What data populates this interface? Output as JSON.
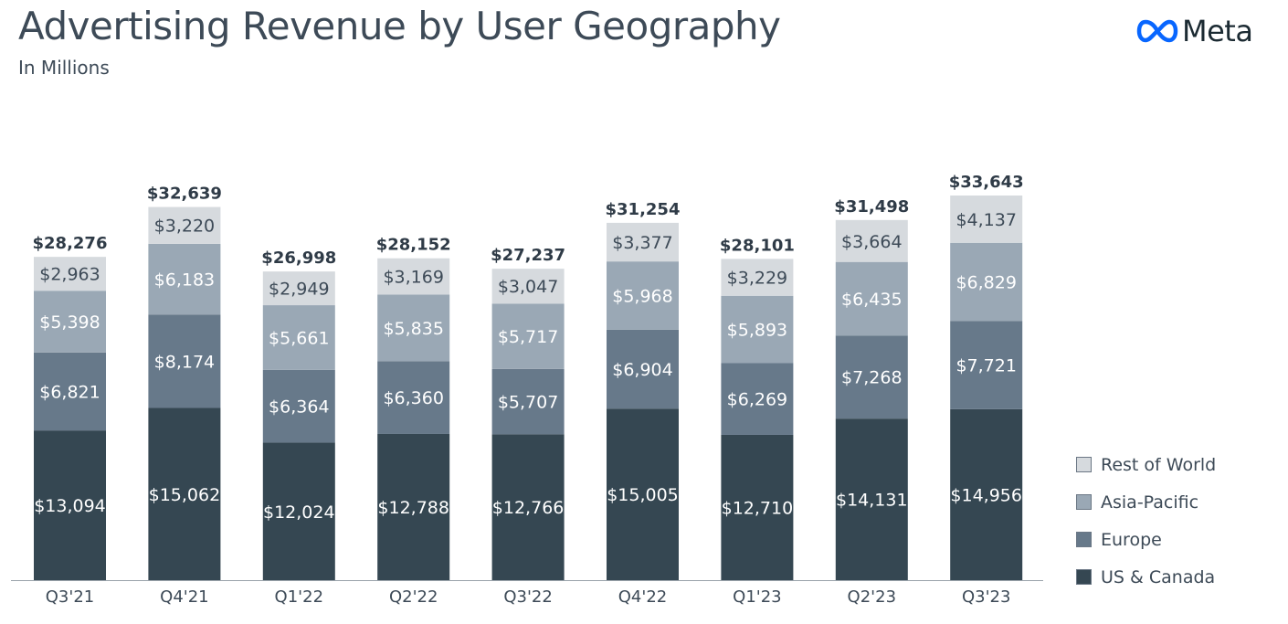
{
  "header": {
    "title": "Advertising Revenue by User Geography",
    "subtitle": "In Millions",
    "brand": "Meta"
  },
  "colors": {
    "us_canada": "#354752",
    "europe": "#67798a",
    "asia_pacific": "#9aa8b5",
    "rest_of_world": "#d6dade",
    "text_dark": "#2f3b47",
    "logo_blue": "#0866ff"
  },
  "icons": {
    "logo": "meta-infinity-icon"
  },
  "chart_data": {
    "type": "bar",
    "stacked": true,
    "title": "Advertising Revenue by User Geography",
    "subtitle": "In Millions",
    "categories": [
      "Q3'21",
      "Q4'21",
      "Q1'22",
      "Q2'22",
      "Q3'22",
      "Q4'22",
      "Q1'23",
      "Q2'23",
      "Q3'23"
    ],
    "series": [
      {
        "name": "US & Canada",
        "values": [
          13094,
          15062,
          12024,
          12788,
          12766,
          15005,
          12710,
          14131,
          14956
        ],
        "labels": [
          "$13,094",
          "$15,062",
          "$12,024",
          "$12,788",
          "$12,766",
          "$15,005",
          "$12,710",
          "$14,131",
          "$14,956"
        ]
      },
      {
        "name": "Europe",
        "values": [
          6821,
          8174,
          6364,
          6360,
          5707,
          6904,
          6269,
          7268,
          7721
        ],
        "labels": [
          "$6,821",
          "$8,174",
          "$6,364",
          "$6,360",
          "$5,707",
          "$6,904",
          "$6,269",
          "$7,268",
          "$7,721"
        ]
      },
      {
        "name": "Asia-Pacific",
        "values": [
          5398,
          6183,
          5661,
          5835,
          5717,
          5968,
          5893,
          6435,
          6829
        ],
        "labels": [
          "$5,398",
          "$6,183",
          "$5,661",
          "$5,835",
          "$5,717",
          "$5,968",
          "$5,893",
          "$6,435",
          "$6,829"
        ]
      },
      {
        "name": "Rest of World",
        "values": [
          2963,
          3220,
          2949,
          3169,
          3047,
          3377,
          3229,
          3664,
          4137
        ],
        "labels": [
          "$2,963",
          "$3,220",
          "$2,949",
          "$3,169",
          "$3,047",
          "$3,377",
          "$3,229",
          "$3,664",
          "$4,137"
        ]
      }
    ],
    "totals": [
      28276,
      32639,
      26998,
      28152,
      27237,
      31254,
      28101,
      31498,
      33643
    ],
    "total_labels": [
      "$28,276",
      "$32,639",
      "$26,998",
      "$28,152",
      "$27,237",
      "$31,254",
      "$28,101",
      "$31,498",
      "$33,643"
    ],
    "ylim": [
      0,
      33643
    ],
    "grid": false,
    "legend": "bottom-right"
  },
  "legend": {
    "items": [
      {
        "label": "Rest of World"
      },
      {
        "label": "Asia-Pacific"
      },
      {
        "label": "Europe"
      },
      {
        "label": "US & Canada"
      }
    ]
  }
}
